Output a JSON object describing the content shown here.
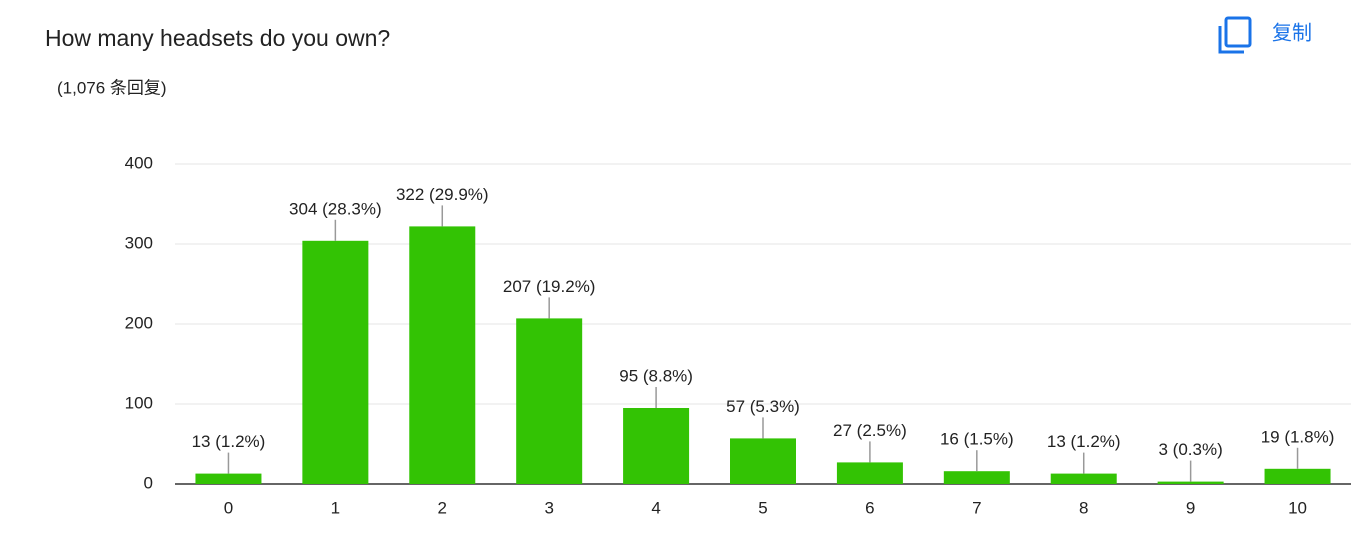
{
  "chart_data": {
    "type": "bar",
    "title": "How many headsets do you own?",
    "subtitle": "(1,076 条回复)",
    "categories": [
      "0",
      "1",
      "2",
      "3",
      "4",
      "5",
      "6",
      "7",
      "8",
      "9",
      "10"
    ],
    "values": [
      13,
      304,
      322,
      207,
      95,
      57,
      27,
      16,
      13,
      3,
      19
    ],
    "value_labels": [
      "13 (1.2%)",
      "304 (28.3%)",
      "322 (29.9%)",
      "207 (19.2%)",
      "95 (8.8%)",
      "57 (5.3%)",
      "27 (2.5%)",
      "16 (1.5%)",
      "13 (1.2%)",
      "3 (0.3%)",
      "19 (1.8%)"
    ],
    "color": "#33c304",
    "ylim": [
      0,
      400
    ],
    "yticks": [
      0,
      100,
      200,
      300,
      400
    ],
    "grid": true
  },
  "copy_button": "复制"
}
